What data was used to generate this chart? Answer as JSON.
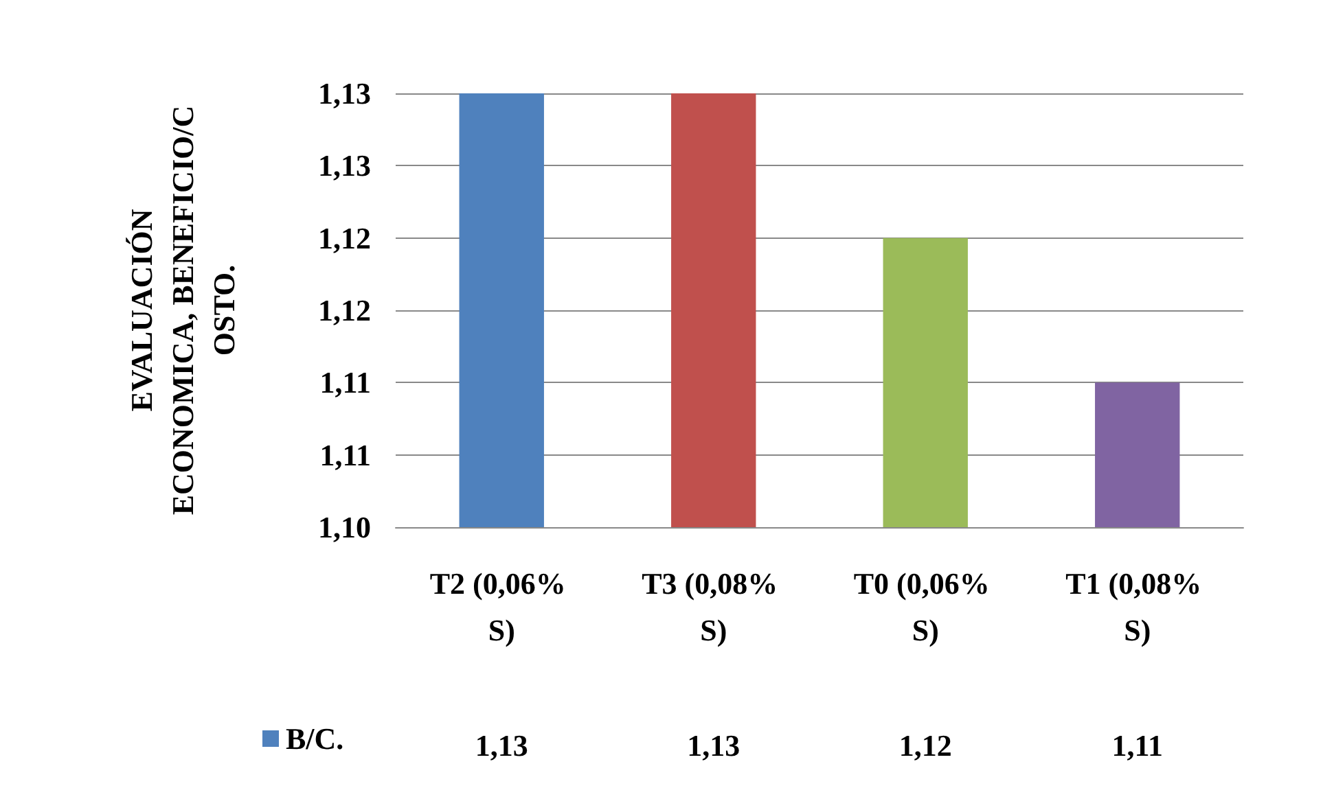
{
  "chart_data": {
    "type": "bar",
    "ylabel": "EVALUACIÓN ECONOMICA, BENEFICIO/COSTO.",
    "categories": [
      "T2 (0,06% S)",
      "T3 (0,08% S)",
      "T0 (0,06% S)",
      "T1 (0,08% S)"
    ],
    "series": [
      {
        "name": "B/C.",
        "color": "#4f81bd",
        "colors": [
          "#4f81bd",
          "#c0504d",
          "#9bbb59",
          "#8064a2"
        ],
        "values": [
          1.13,
          1.13,
          1.12,
          1.11
        ],
        "value_labels": [
          "1,13",
          "1,13",
          "1,12",
          "1,11"
        ]
      }
    ],
    "ylim": [
      1.1,
      1.13
    ],
    "yticks": [
      {
        "value": 1.1,
        "label": "1,10"
      },
      {
        "value": 1.105,
        "label": "1,11"
      },
      {
        "value": 1.11,
        "label": "1,11"
      },
      {
        "value": 1.115,
        "label": "1,12"
      },
      {
        "value": 1.12,
        "label": "1,12"
      },
      {
        "value": 1.125,
        "label": "1,13"
      },
      {
        "value": 1.13,
        "label": "1,13"
      }
    ],
    "grid": "y",
    "legend": "bottom left"
  }
}
